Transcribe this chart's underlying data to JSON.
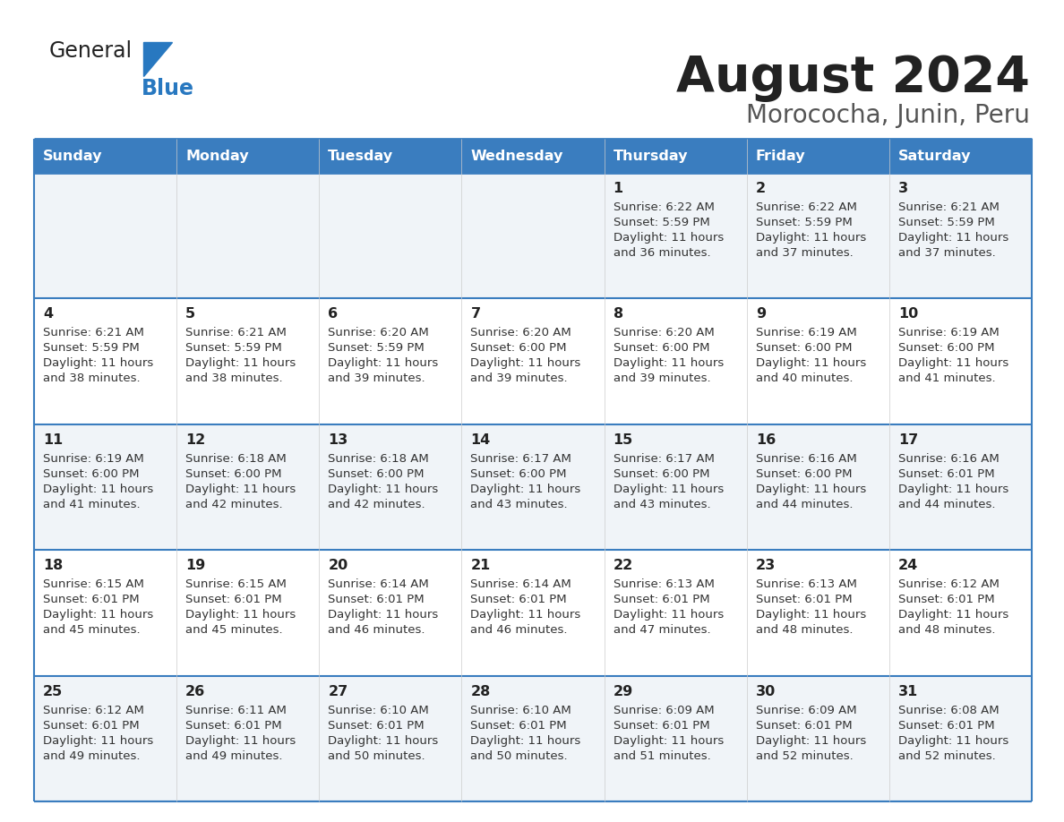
{
  "title": "August 2024",
  "subtitle": "Morococha, Junin, Peru",
  "days_of_week": [
    "Sunday",
    "Monday",
    "Tuesday",
    "Wednesday",
    "Thursday",
    "Friday",
    "Saturday"
  ],
  "header_bg": "#3a7dbf",
  "header_text_color": "#ffffff",
  "row_bg_light": "#f0f4f8",
  "row_bg_white": "#ffffff",
  "border_color": "#3a7dbf",
  "cell_border_color": "#cccccc",
  "text_color": "#333333",
  "logo_text_color": "#222222",
  "logo_blue_color": "#2878c0",
  "title_color": "#222222",
  "subtitle_color": "#555555",
  "calendar": [
    [
      null,
      null,
      null,
      null,
      {
        "day": "1",
        "sunrise": "6:22 AM",
        "sunset": "5:59 PM",
        "daylight_h": "11 hours",
        "daylight_m": "36 minutes."
      },
      {
        "day": "2",
        "sunrise": "6:22 AM",
        "sunset": "5:59 PM",
        "daylight_h": "11 hours",
        "daylight_m": "37 minutes."
      },
      {
        "day": "3",
        "sunrise": "6:21 AM",
        "sunset": "5:59 PM",
        "daylight_h": "11 hours",
        "daylight_m": "37 minutes."
      }
    ],
    [
      {
        "day": "4",
        "sunrise": "6:21 AM",
        "sunset": "5:59 PM",
        "daylight_h": "11 hours",
        "daylight_m": "38 minutes."
      },
      {
        "day": "5",
        "sunrise": "6:21 AM",
        "sunset": "5:59 PM",
        "daylight_h": "11 hours",
        "daylight_m": "38 minutes."
      },
      {
        "day": "6",
        "sunrise": "6:20 AM",
        "sunset": "5:59 PM",
        "daylight_h": "11 hours",
        "daylight_m": "39 minutes."
      },
      {
        "day": "7",
        "sunrise": "6:20 AM",
        "sunset": "6:00 PM",
        "daylight_h": "11 hours",
        "daylight_m": "39 minutes."
      },
      {
        "day": "8",
        "sunrise": "6:20 AM",
        "sunset": "6:00 PM",
        "daylight_h": "11 hours",
        "daylight_m": "39 minutes."
      },
      {
        "day": "9",
        "sunrise": "6:19 AM",
        "sunset": "6:00 PM",
        "daylight_h": "11 hours",
        "daylight_m": "40 minutes."
      },
      {
        "day": "10",
        "sunrise": "6:19 AM",
        "sunset": "6:00 PM",
        "daylight_h": "11 hours",
        "daylight_m": "41 minutes."
      }
    ],
    [
      {
        "day": "11",
        "sunrise": "6:19 AM",
        "sunset": "6:00 PM",
        "daylight_h": "11 hours",
        "daylight_m": "41 minutes."
      },
      {
        "day": "12",
        "sunrise": "6:18 AM",
        "sunset": "6:00 PM",
        "daylight_h": "11 hours",
        "daylight_m": "42 minutes."
      },
      {
        "day": "13",
        "sunrise": "6:18 AM",
        "sunset": "6:00 PM",
        "daylight_h": "11 hours",
        "daylight_m": "42 minutes."
      },
      {
        "day": "14",
        "sunrise": "6:17 AM",
        "sunset": "6:00 PM",
        "daylight_h": "11 hours",
        "daylight_m": "43 minutes."
      },
      {
        "day": "15",
        "sunrise": "6:17 AM",
        "sunset": "6:00 PM",
        "daylight_h": "11 hours",
        "daylight_m": "43 minutes."
      },
      {
        "day": "16",
        "sunrise": "6:16 AM",
        "sunset": "6:00 PM",
        "daylight_h": "11 hours",
        "daylight_m": "44 minutes."
      },
      {
        "day": "17",
        "sunrise": "6:16 AM",
        "sunset": "6:01 PM",
        "daylight_h": "11 hours",
        "daylight_m": "44 minutes."
      }
    ],
    [
      {
        "day": "18",
        "sunrise": "6:15 AM",
        "sunset": "6:01 PM",
        "daylight_h": "11 hours",
        "daylight_m": "45 minutes."
      },
      {
        "day": "19",
        "sunrise": "6:15 AM",
        "sunset": "6:01 PM",
        "daylight_h": "11 hours",
        "daylight_m": "45 minutes."
      },
      {
        "day": "20",
        "sunrise": "6:14 AM",
        "sunset": "6:01 PM",
        "daylight_h": "11 hours",
        "daylight_m": "46 minutes."
      },
      {
        "day": "21",
        "sunrise": "6:14 AM",
        "sunset": "6:01 PM",
        "daylight_h": "11 hours",
        "daylight_m": "46 minutes."
      },
      {
        "day": "22",
        "sunrise": "6:13 AM",
        "sunset": "6:01 PM",
        "daylight_h": "11 hours",
        "daylight_m": "47 minutes."
      },
      {
        "day": "23",
        "sunrise": "6:13 AM",
        "sunset": "6:01 PM",
        "daylight_h": "11 hours",
        "daylight_m": "48 minutes."
      },
      {
        "day": "24",
        "sunrise": "6:12 AM",
        "sunset": "6:01 PM",
        "daylight_h": "11 hours",
        "daylight_m": "48 minutes."
      }
    ],
    [
      {
        "day": "25",
        "sunrise": "6:12 AM",
        "sunset": "6:01 PM",
        "daylight_h": "11 hours",
        "daylight_m": "49 minutes."
      },
      {
        "day": "26",
        "sunrise": "6:11 AM",
        "sunset": "6:01 PM",
        "daylight_h": "11 hours",
        "daylight_m": "49 minutes."
      },
      {
        "day": "27",
        "sunrise": "6:10 AM",
        "sunset": "6:01 PM",
        "daylight_h": "11 hours",
        "daylight_m": "50 minutes."
      },
      {
        "day": "28",
        "sunrise": "6:10 AM",
        "sunset": "6:01 PM",
        "daylight_h": "11 hours",
        "daylight_m": "50 minutes."
      },
      {
        "day": "29",
        "sunrise": "6:09 AM",
        "sunset": "6:01 PM",
        "daylight_h": "11 hours",
        "daylight_m": "51 minutes."
      },
      {
        "day": "30",
        "sunrise": "6:09 AM",
        "sunset": "6:01 PM",
        "daylight_h": "11 hours",
        "daylight_m": "52 minutes."
      },
      {
        "day": "31",
        "sunrise": "6:08 AM",
        "sunset": "6:01 PM",
        "daylight_h": "11 hours",
        "daylight_m": "52 minutes."
      }
    ]
  ]
}
